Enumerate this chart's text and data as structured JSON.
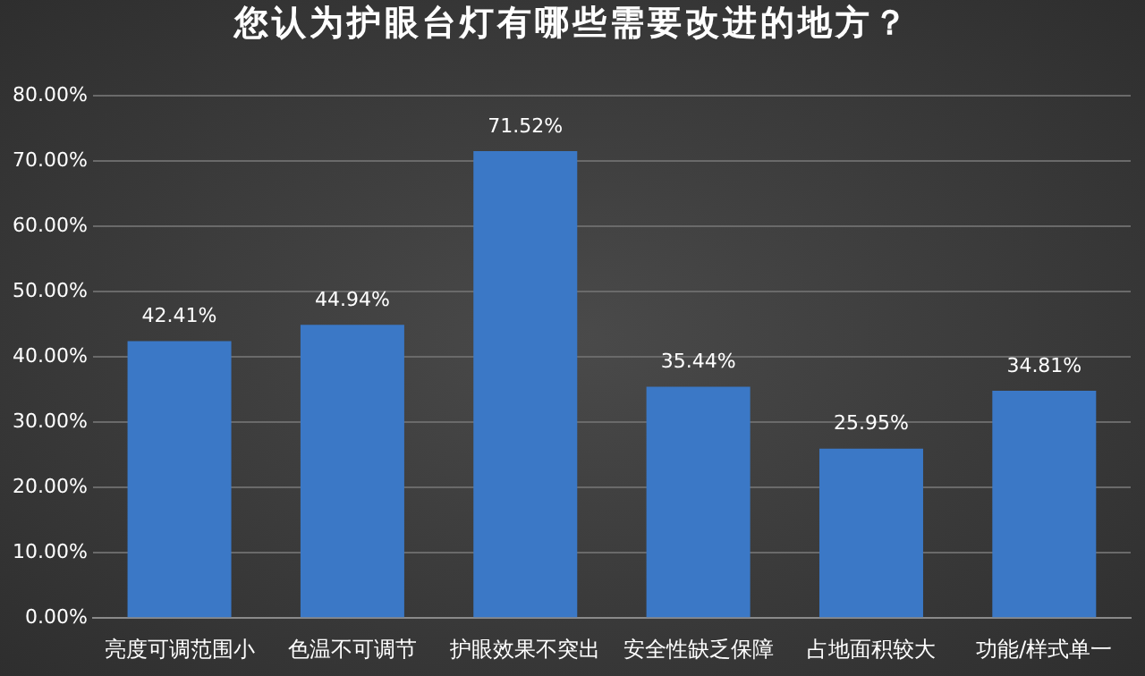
{
  "chart_data": {
    "type": "bar",
    "title": "您认为护眼台灯有哪些需要改进的地方？",
    "categories": [
      "亮度可调范围小",
      "色温不可调节",
      "护眼效果不突出",
      "安全性缺乏保障",
      "占地面积较大",
      "功能/样式单一"
    ],
    "values": [
      42.41,
      44.94,
      71.52,
      35.44,
      25.95,
      34.81
    ],
    "value_labels": [
      "42.41%",
      "44.94%",
      "71.52%",
      "35.44%",
      "25.95%",
      "34.81%"
    ],
    "color": "#3b78c6",
    "ylim": [
      0,
      80
    ],
    "yticks": [
      {
        "value": 0,
        "label": "0.00%"
      },
      {
        "value": 10,
        "label": "10.00%"
      },
      {
        "value": 20,
        "label": "20.00%"
      },
      {
        "value": 30,
        "label": "30.00%"
      },
      {
        "value": 40,
        "label": "40.00%"
      },
      {
        "value": 50,
        "label": "50.00%"
      },
      {
        "value": 60,
        "label": "60.00%"
      },
      {
        "value": 70,
        "label": "70.00%"
      },
      {
        "value": 80,
        "label": "80.00%"
      }
    ],
    "grid": "y",
    "legend": false
  }
}
